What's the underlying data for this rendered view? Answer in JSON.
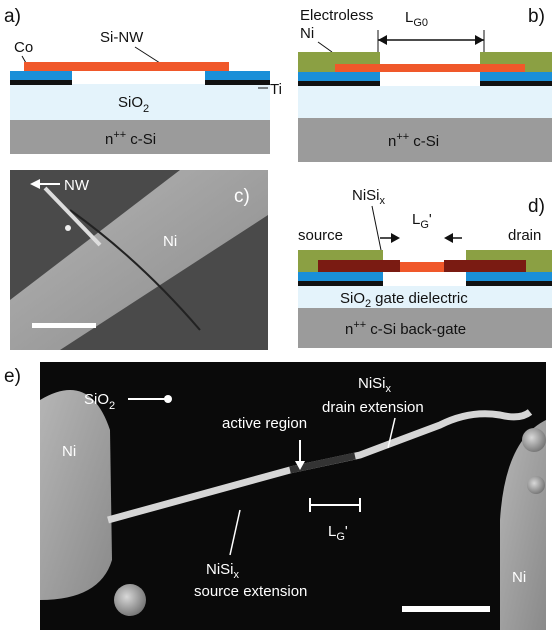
{
  "panel_a": {
    "label": "a)",
    "co": "Co",
    "nanowire": "Si-NW",
    "oxide": {
      "base": "SiO",
      "sub": "2"
    },
    "ti": "Ti",
    "substrate": {
      "base": "n",
      "sup": "++",
      "rest": "c-Si"
    }
  },
  "panel_b": {
    "label": "b)",
    "metal": [
      "Electroless",
      "Ni"
    ],
    "gap": {
      "base": "L",
      "sub": "G0"
    },
    "substrate": {
      "base": "n",
      "sup": "++",
      "rest": "c-Si"
    }
  },
  "panel_c": {
    "label": "c)",
    "nanowire": "NW",
    "metal": "Ni"
  },
  "panel_d": {
    "label": "d)",
    "silicide": {
      "base": "NiSi",
      "sub": "x"
    },
    "gap": {
      "base": "L",
      "sub": "G",
      "rest": "'"
    },
    "source": "source",
    "drain": "drain",
    "oxide": {
      "base": "SiO",
      "sub": "2",
      "rest": "gate dielectric"
    },
    "substrate": {
      "base": "n",
      "sup": "++",
      "rest": "c-Si back-gate"
    }
  },
  "panel_e": {
    "label": "e)",
    "oxide": {
      "base": "SiO",
      "sub": "2"
    },
    "left_metal": "Ni",
    "right_metal": "Ni",
    "active": "active region",
    "drain_ext": {
      "base": "NiSi",
      "sub": "x",
      "line2": "drain extension"
    },
    "gap": {
      "base": "L",
      "sub": "G",
      "rest": "'"
    },
    "source_ext": {
      "base": "NiSi",
      "sub": "x",
      "line2": "source extension"
    }
  }
}
